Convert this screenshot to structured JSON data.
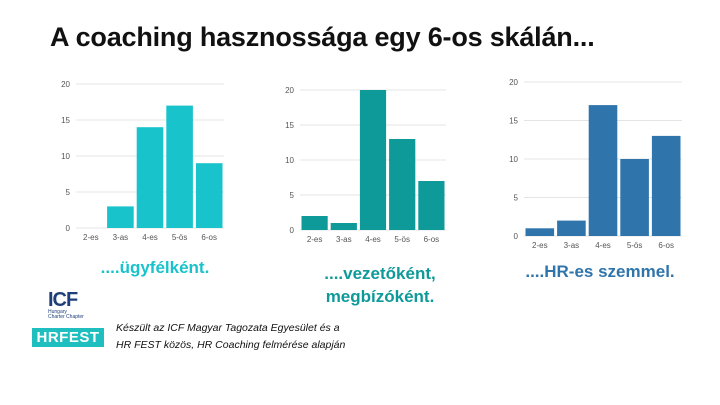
{
  "title": "A coaching hasznossága egy 6-os skálán...",
  "colors": {
    "client": "#19c3cc",
    "leader": "#0f9a9a",
    "hr": "#2f74ab",
    "grid": "#e4e4e4",
    "tick": "#555555"
  },
  "chart_data": [
    {
      "type": "bar",
      "categories": [
        "2-es",
        "3-as",
        "4-es",
        "5-ös",
        "6-os"
      ],
      "values": [
        0,
        3,
        14,
        17,
        9
      ],
      "ylim": [
        0,
        20
      ],
      "yticks": [
        0,
        5,
        10,
        15,
        20
      ],
      "grid": true,
      "caption": "....ügyfélként."
    },
    {
      "type": "bar",
      "categories": [
        "2-es",
        "3-as",
        "4-es",
        "5-ös",
        "6-os"
      ],
      "values": [
        2,
        1,
        20,
        13,
        7
      ],
      "ylim": [
        0,
        20
      ],
      "yticks": [
        0,
        5,
        10,
        15,
        20
      ],
      "grid": true,
      "caption": [
        "....vezetőként,",
        "megbízóként."
      ]
    },
    {
      "type": "bar",
      "categories": [
        "2-es",
        "3-as",
        "4-es",
        "5-ös",
        "6-os"
      ],
      "values": [
        1,
        2,
        17,
        10,
        13
      ],
      "ylim": [
        0,
        20
      ],
      "yticks": [
        0,
        5,
        10,
        15,
        20
      ],
      "grid": true,
      "caption": "....HR-es szemmel."
    }
  ],
  "footer": {
    "logo_icf": "ICF",
    "logo_icf_sub": "Hungary",
    "logo_icf_sub2": "Charter Chapter",
    "logo_hrfest": "HRFEST",
    "source_line1": "Készült az ICF Magyar Tagozata Egyesület és a",
    "source_line2": "HR FEST közös, HR Coaching felmérése alapján"
  }
}
